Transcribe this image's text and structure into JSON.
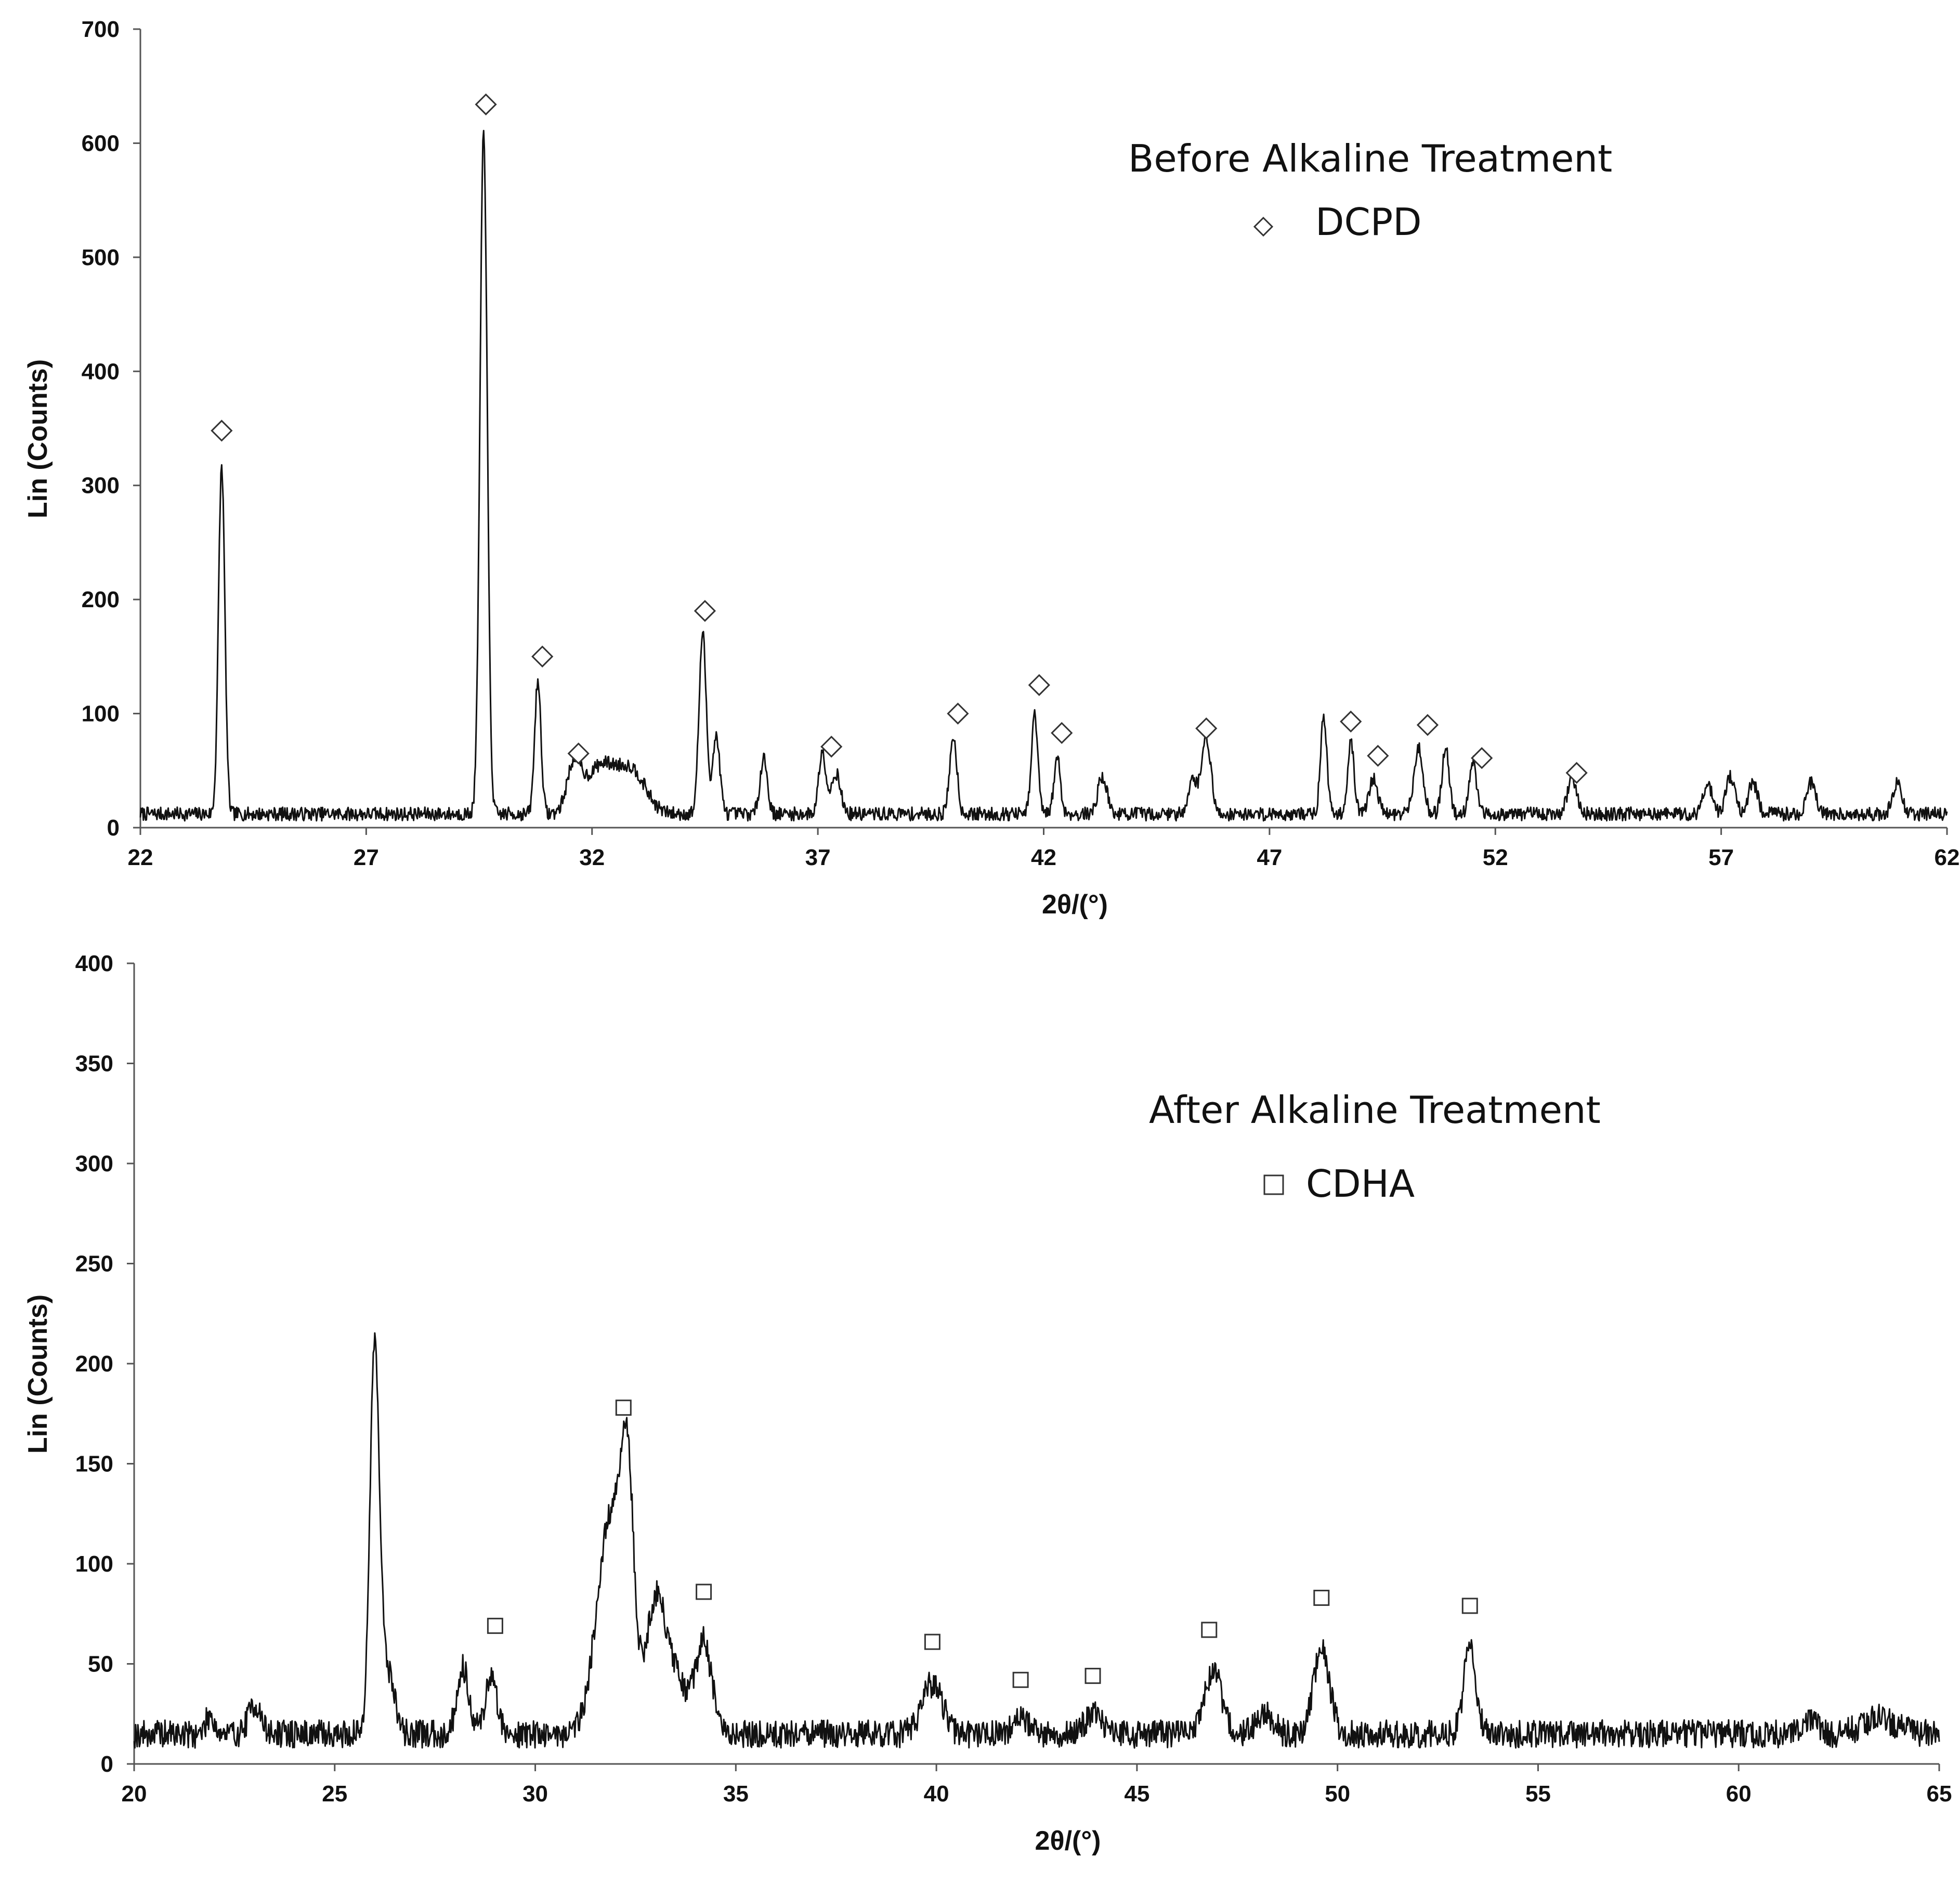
{
  "chart_data": [
    {
      "type": "line",
      "ylabel": "Lin (Counts)",
      "xlabel": "2θ/(°)",
      "xlim": [
        22,
        62
      ],
      "ylim": [
        0,
        700
      ],
      "xticks": [
        22,
        27,
        32,
        37,
        42,
        47,
        52,
        57,
        62
      ],
      "yticks": [
        0,
        100,
        200,
        300,
        400,
        500,
        600,
        700
      ],
      "grid": false,
      "legend": {
        "title": "Before  Alkaline Treatment",
        "marker": "diamond",
        "label": "DCPD",
        "position": "top-right"
      },
      "baseline": 12,
      "noise_amplitude": 6,
      "peaks": [
        {
          "x": 23.8,
          "y": 305,
          "w": 0.07
        },
        {
          "x": 29.6,
          "y": 600,
          "w": 0.08
        },
        {
          "x": 30.8,
          "y": 117,
          "w": 0.07
        },
        {
          "x": 31.6,
          "y": 40,
          "w": 0.15
        },
        {
          "x": 32.2,
          "y": 42,
          "w": 0.35
        },
        {
          "x": 32.9,
          "y": 35,
          "w": 0.3
        },
        {
          "x": 34.45,
          "y": 158,
          "w": 0.08
        },
        {
          "x": 34.75,
          "y": 68,
          "w": 0.08
        },
        {
          "x": 35.8,
          "y": 50,
          "w": 0.08
        },
        {
          "x": 37.1,
          "y": 55,
          "w": 0.08
        },
        {
          "x": 37.4,
          "y": 36,
          "w": 0.1
        },
        {
          "x": 40.0,
          "y": 68,
          "w": 0.08
        },
        {
          "x": 41.8,
          "y": 87,
          "w": 0.07
        },
        {
          "x": 42.3,
          "y": 50,
          "w": 0.07
        },
        {
          "x": 43.3,
          "y": 33,
          "w": 0.1
        },
        {
          "x": 45.6,
          "y": 68,
          "w": 0.1
        },
        {
          "x": 45.3,
          "y": 30,
          "w": 0.1
        },
        {
          "x": 48.2,
          "y": 85,
          "w": 0.07
        },
        {
          "x": 48.8,
          "y": 65,
          "w": 0.07
        },
        {
          "x": 49.3,
          "y": 30,
          "w": 0.1
        },
        {
          "x": 50.3,
          "y": 58,
          "w": 0.1
        },
        {
          "x": 50.9,
          "y": 57,
          "w": 0.08
        },
        {
          "x": 51.5,
          "y": 47,
          "w": 0.08
        },
        {
          "x": 53.7,
          "y": 32,
          "w": 0.1
        },
        {
          "x": 56.7,
          "y": 27,
          "w": 0.1
        },
        {
          "x": 57.2,
          "y": 32,
          "w": 0.1
        },
        {
          "x": 57.7,
          "y": 28,
          "w": 0.1
        },
        {
          "x": 59.0,
          "y": 28,
          "w": 0.1
        },
        {
          "x": 60.9,
          "y": 28,
          "w": 0.1
        }
      ],
      "markers": [
        {
          "x": 23.8,
          "y": 348
        },
        {
          "x": 29.65,
          "y": 634
        },
        {
          "x": 30.9,
          "y": 150
        },
        {
          "x": 31.7,
          "y": 65
        },
        {
          "x": 34.5,
          "y": 190
        },
        {
          "x": 37.3,
          "y": 71
        },
        {
          "x": 40.1,
          "y": 100
        },
        {
          "x": 41.9,
          "y": 125
        },
        {
          "x": 42.4,
          "y": 83
        },
        {
          "x": 45.6,
          "y": 87
        },
        {
          "x": 48.8,
          "y": 93
        },
        {
          "x": 49.4,
          "y": 63
        },
        {
          "x": 50.5,
          "y": 90
        },
        {
          "x": 51.7,
          "y": 61
        },
        {
          "x": 53.8,
          "y": 48
        }
      ]
    },
    {
      "type": "line",
      "ylabel": "Lin (Counts)",
      "xlabel": "2θ/(°)",
      "xlim": [
        20,
        65
      ],
      "ylim": [
        0,
        400
      ],
      "xticks": [
        20,
        25,
        30,
        35,
        40,
        45,
        50,
        55,
        60,
        65
      ],
      "yticks": [
        0,
        50,
        100,
        150,
        200,
        250,
        300,
        350,
        400
      ],
      "grid": false,
      "legend": {
        "title": "After  Alkaline Treatment",
        "marker": "square",
        "label": "CDHA",
        "position": "top-right"
      },
      "baseline": 15,
      "noise_amplitude": 7,
      "peaks": [
        {
          "x": 21.9,
          "y": 10,
          "w": 0.1
        },
        {
          "x": 23.0,
          "y": 15,
          "w": 0.15
        },
        {
          "x": 26.0,
          "y": 195,
          "w": 0.12
        },
        {
          "x": 26.35,
          "y": 30,
          "w": 0.15
        },
        {
          "x": 28.2,
          "y": 33,
          "w": 0.15
        },
        {
          "x": 28.9,
          "y": 28,
          "w": 0.15
        },
        {
          "x": 31.9,
          "y": 110,
          "w": 0.35
        },
        {
          "x": 32.3,
          "y": 95,
          "w": 0.15
        },
        {
          "x": 33.0,
          "y": 62,
          "w": 0.25
        },
        {
          "x": 33.5,
          "y": 25,
          "w": 0.3
        },
        {
          "x": 34.2,
          "y": 45,
          "w": 0.2
        },
        {
          "x": 39.9,
          "y": 25,
          "w": 0.25
        },
        {
          "x": 42.1,
          "y": 8,
          "w": 0.2
        },
        {
          "x": 43.9,
          "y": 10,
          "w": 0.2
        },
        {
          "x": 46.9,
          "y": 32,
          "w": 0.2
        },
        {
          "x": 48.2,
          "y": 10,
          "w": 0.2
        },
        {
          "x": 49.6,
          "y": 42,
          "w": 0.2
        },
        {
          "x": 53.3,
          "y": 45,
          "w": 0.15
        },
        {
          "x": 61.8,
          "y": 6,
          "w": 0.2
        },
        {
          "x": 63.5,
          "y": 8,
          "w": 0.4
        }
      ],
      "markers": [
        {
          "x": 29.0,
          "y": 69
        },
        {
          "x": 32.2,
          "y": 178
        },
        {
          "x": 34.2,
          "y": 86
        },
        {
          "x": 39.9,
          "y": 61
        },
        {
          "x": 42.1,
          "y": 42
        },
        {
          "x": 43.9,
          "y": 44
        },
        {
          "x": 46.8,
          "y": 67
        },
        {
          "x": 49.6,
          "y": 83
        },
        {
          "x": 53.3,
          "y": 79
        }
      ]
    }
  ]
}
